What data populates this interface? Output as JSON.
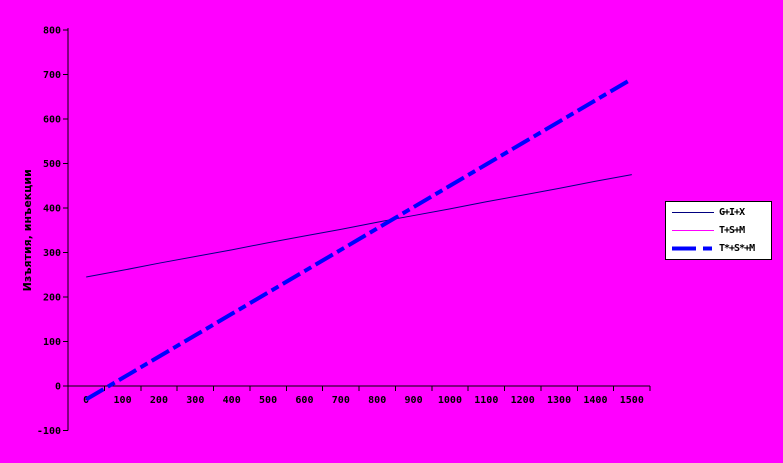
{
  "background_color": "#FF00FF",
  "chart_data": {
    "type": "line",
    "title": "",
    "xlabel": "",
    "ylabel": "Изъятия, инъекции",
    "x_categories": [
      "0",
      "100",
      "200",
      "300",
      "400",
      "500",
      "600",
      "700",
      "800",
      "900",
      "1000",
      "1100",
      "1200",
      "1300",
      "1400",
      "1500"
    ],
    "y_ticks": [
      800,
      700,
      600,
      500,
      400,
      300,
      200,
      100,
      0,
      -100
    ],
    "ylim": [
      -100,
      800
    ],
    "xlim": [
      0,
      1500
    ],
    "grid": false,
    "plot_background": "#FF00FF",
    "axis_color": "#000000",
    "text_color": "#000000",
    "legend_position": "right-outside",
    "series": [
      {
        "name": "G+I+X",
        "color": "#000080",
        "style": "solid",
        "width": 1,
        "visible": true,
        "values": [
          245,
          260,
          276,
          291,
          306,
          322,
          337,
          352,
          368,
          383,
          398,
          414,
          429,
          444,
          460,
          475
        ]
      },
      {
        "name": "T+S+M",
        "color": "#FF00FF",
        "style": "solid",
        "width": 1,
        "visible": false,
        "values": []
      },
      {
        "name": "T*+S*+M",
        "color": "#0000FF",
        "style": "dashed",
        "width": 4,
        "visible": true,
        "values": [
          -30,
          18,
          66,
          114,
          162,
          210,
          258,
          306,
          354,
          402,
          450,
          498,
          546,
          594,
          642,
          690
        ]
      }
    ]
  },
  "legend": {
    "background": "#FFFFFF",
    "border_color": "#000000",
    "entries": [
      {
        "label": "G+I+X",
        "color": "#000080",
        "line_style": "solid",
        "line_width": 1
      },
      {
        "label": "T+S+M",
        "color": "#FF00FF",
        "line_style": "solid",
        "line_width": 1
      },
      {
        "label": "T*+S*+M",
        "color": "#0000FF",
        "line_style": "dashed",
        "line_width": 4
      }
    ]
  }
}
